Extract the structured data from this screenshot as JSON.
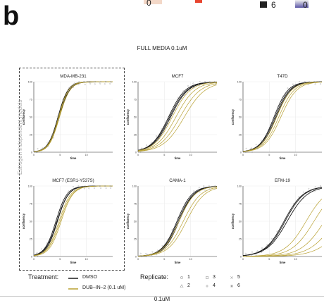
{
  "top_legend": {
    "items": [
      {
        "text": "0",
        "swatch": "#f3d8c8"
      },
      {
        "text": "6",
        "swatch": "#222222"
      },
      {
        "text": "0",
        "swatch": "#5a55a5"
      }
    ],
    "red_swatch": "#e8452f"
  },
  "panel_letter": "b",
  "main_title": "FULL MEDIA 0.1uM",
  "side_label": "Estrogen independent models",
  "bottom_caption": "0.1uM",
  "colors": {
    "dmso": "#1a1a1a",
    "dub": "#b8a030",
    "grid": "#ebebeb",
    "axis": "#333333"
  },
  "legend": {
    "treatment_title": "Treatment:",
    "treatment_items": [
      {
        "label": "DMSO",
        "color": "#1a1a1a"
      },
      {
        "label": "DUB–IN–2 (0.1 uM)",
        "color": "#b8a030"
      }
    ],
    "replicate_title": "Replicate:",
    "replicate_items": [
      {
        "label": "1",
        "marker": "circle"
      },
      {
        "label": "2",
        "marker": "triangle"
      },
      {
        "label": "3",
        "marker": "square"
      },
      {
        "label": "4",
        "marker": "plus"
      },
      {
        "label": "5",
        "marker": "cross"
      },
      {
        "label": "6",
        "marker": "asterisk"
      }
    ]
  },
  "chart_data": [
    {
      "type": "line",
      "title": "MDA-MB-231",
      "xlabel": "time",
      "ylabel": "confluency",
      "xlim": [
        0,
        15
      ],
      "ylim": [
        0,
        100
      ],
      "xticks": [
        0,
        5,
        10
      ],
      "yticks": [
        0,
        25,
        50,
        75,
        100
      ],
      "series": [
        {
          "name": "DMSO",
          "curves": [
            [
              4.6,
              1.05
            ],
            [
              4.8,
              1.0
            ],
            [
              4.7,
              1.1
            ]
          ]
        },
        {
          "name": "DUB–IN–2 (0.1 uM)",
          "curves": [
            [
              4.7,
              1.05
            ],
            [
              4.9,
              1.0
            ],
            [
              4.8,
              1.1
            ]
          ]
        }
      ]
    },
    {
      "type": "line",
      "title": "MCF7",
      "xlabel": "time",
      "ylabel": "confluency",
      "xlim": [
        0,
        15
      ],
      "ylim": [
        0,
        100
      ],
      "xticks": [
        0,
        5,
        10
      ],
      "yticks": [
        0,
        25,
        50,
        75,
        100
      ],
      "series": [
        {
          "name": "DMSO",
          "curves": [
            [
              5.8,
              0.62
            ],
            [
              6.0,
              0.6
            ],
            [
              6.2,
              0.6
            ]
          ]
        },
        {
          "name": "DUB–IN–2 (0.1 uM)",
          "curves": [
            [
              6.5,
              0.58
            ],
            [
              7.2,
              0.55
            ],
            [
              8.0,
              0.52
            ],
            [
              8.8,
              0.5
            ]
          ]
        }
      ]
    },
    {
      "type": "line",
      "title": "T47D",
      "xlabel": "time",
      "ylabel": "confluency",
      "xlim": [
        0,
        15
      ],
      "ylim": [
        0,
        100
      ],
      "xticks": [
        0,
        5,
        10
      ],
      "yticks": [
        0,
        25,
        50,
        75,
        100
      ],
      "series": [
        {
          "name": "DMSO",
          "curves": [
            [
              5.9,
              0.75
            ],
            [
              6.1,
              0.72
            ],
            [
              6.3,
              0.72
            ]
          ]
        },
        {
          "name": "DUB–IN–2 (0.1 uM)",
          "curves": [
            [
              6.4,
              0.7
            ],
            [
              6.8,
              0.68
            ],
            [
              7.2,
              0.66
            ]
          ]
        }
      ]
    },
    {
      "type": "line",
      "title": "MCF7 (ESR1-Y537S)",
      "xlabel": "time",
      "ylabel": "confluency",
      "xlim": [
        0,
        15
      ],
      "ylim": [
        0,
        100
      ],
      "xticks": [
        0,
        5,
        10
      ],
      "yticks": [
        0,
        25,
        50,
        75,
        100
      ],
      "series": [
        {
          "name": "DMSO",
          "curves": [
            [
              4.2,
              0.95
            ],
            [
              4.4,
              0.92
            ],
            [
              4.5,
              0.95
            ]
          ]
        },
        {
          "name": "DUB–IN–2 (0.1 uM)",
          "curves": [
            [
              4.8,
              0.9
            ],
            [
              5.0,
              0.88
            ],
            [
              5.2,
              0.9
            ]
          ]
        }
      ]
    },
    {
      "type": "line",
      "title": "CAMA-1",
      "xlabel": "time",
      "ylabel": "confluency",
      "xlim": [
        0,
        15
      ],
      "ylim": [
        0,
        100
      ],
      "xticks": [
        0,
        5,
        10
      ],
      "yticks": [
        0,
        25,
        50,
        75,
        100
      ],
      "series": [
        {
          "name": "DMSO",
          "curves": [
            [
              7.4,
              0.7
            ],
            [
              7.6,
              0.68
            ],
            [
              7.8,
              0.7
            ]
          ]
        },
        {
          "name": "DUB–IN–2 (0.1 uM)",
          "curves": [
            [
              7.8,
              0.66
            ],
            [
              8.6,
              0.6
            ],
            [
              9.2,
              0.58
            ]
          ]
        }
      ]
    },
    {
      "type": "line",
      "title": "EFM-19",
      "xlabel": "time",
      "ylabel": "confluency",
      "xlim": [
        0,
        15
      ],
      "ylim": [
        0,
        100
      ],
      "xticks": [
        0,
        5,
        10
      ],
      "yticks": [
        0,
        25,
        50,
        75,
        100
      ],
      "series": [
        {
          "name": "DMSO",
          "curves": [
            [
              7.8,
              0.55
            ],
            [
              8.0,
              0.55
            ],
            [
              8.4,
              0.52
            ]
          ]
        },
        {
          "name": "DUB–IN–2 (0.1 uM)",
          "curves": [
            [
              12.0,
              0.5
            ],
            [
              13.5,
              0.48
            ],
            [
              15.5,
              0.45
            ],
            [
              17.5,
              0.42
            ],
            [
              19.5,
              0.4
            ]
          ]
        }
      ]
    }
  ]
}
